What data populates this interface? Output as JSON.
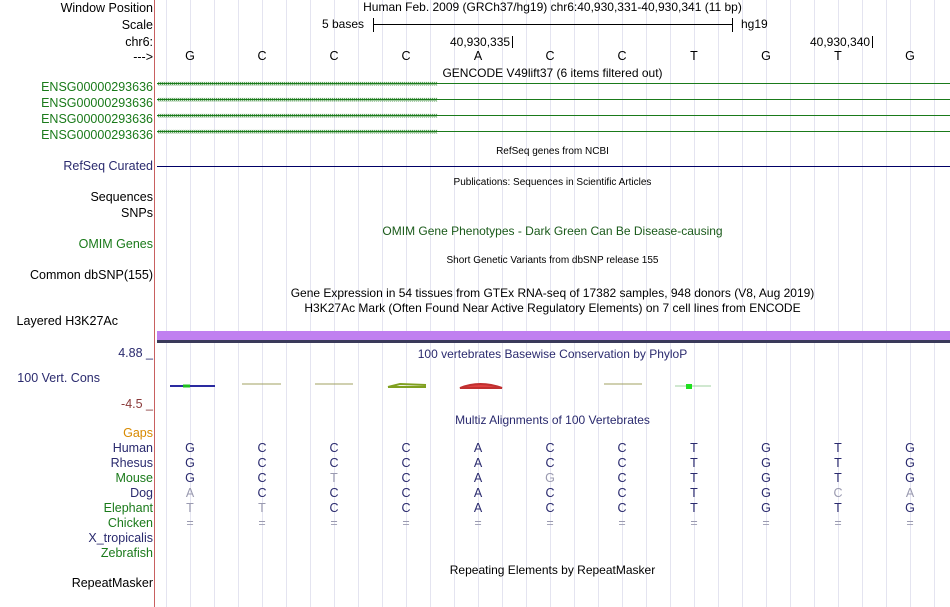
{
  "labels": {
    "window_position": "Window Position",
    "scale": "Scale",
    "chrom": "chr6:",
    "strand": "--->",
    "gencode": [
      "ENSG00000293636",
      "ENSG00000293636",
      "ENSG00000293636",
      "ENSG00000293636"
    ],
    "refseq": "RefSeq Curated",
    "sequences": "Sequences",
    "snps": "SNPs",
    "omim": "OMIM Genes",
    "dbsnp": "Common dbSNP(155)",
    "h3k27ac": "Layered H3K27Ac",
    "cons_max": "4.88 _",
    "cons_label": "100 Vert. Cons",
    "cons_min": "-4.5 _",
    "gaps": "Gaps",
    "species": [
      "Human",
      "Rhesus",
      "Mouse",
      "Dog",
      "Elephant",
      "Chicken",
      "X_tropicalis",
      "Zebrafish"
    ],
    "repeatmasker": "RepeatMasker"
  },
  "header": {
    "position_text": "Human Feb. 2009 (GRCh37/hg19)   chr6:40,930,331-40,930,341 (11 bp)",
    "scale_text": "5 bases",
    "assembly": "hg19",
    "tick1": "40,930,335",
    "tick2": "40,930,340"
  },
  "tracks": {
    "gencode_title": "GENCODE V49lift37 (6 items filtered out)",
    "refseq_title": "RefSeq genes from NCBI",
    "pubs_title": "Publications: Sequences in Scientific Articles",
    "omim_title": "OMIM Gene Phenotypes - Dark Green Can Be Disease-causing",
    "snp_title": "Short Genetic Variants from dbSNP release 155",
    "gtex_title": "Gene Expression in 54 tissues from GTEx RNA-seq of 17382 samples, 948 donors (V8, Aug 2019)",
    "h3k27ac_title": "H3K27Ac Mark (Often Found Near Active Regulatory Elements) on 7 cell lines from ENCODE",
    "phylop_title": "100 vertebrates Basewise Conservation by PhyloP",
    "multiz_title": "Multiz Alignments of 100 Vertebrates",
    "repeat_title": "Repeating Elements by RepeatMasker"
  },
  "sequence": {
    "bases": [
      "G",
      "C",
      "C",
      "C",
      "A",
      "C",
      "C",
      "T",
      "G",
      "T",
      "G"
    ],
    "alignment": [
      [
        "G",
        "C",
        "C",
        "C",
        "A",
        "C",
        "C",
        "T",
        "G",
        "T",
        "G"
      ],
      [
        "G",
        "C",
        "C",
        "C",
        "A",
        "C",
        "C",
        "T",
        "G",
        "T",
        "G"
      ],
      [
        "G",
        "C",
        "T",
        "C",
        "A",
        "G",
        "C",
        "T",
        "G",
        "T",
        "G"
      ],
      [
        "A",
        "C",
        "C",
        "C",
        "A",
        "C",
        "C",
        "T",
        "G",
        "C",
        "A"
      ],
      [
        "T",
        "T",
        "C",
        "C",
        "A",
        "C",
        "C",
        "T",
        "G",
        "T",
        "G"
      ],
      [
        "=",
        "=",
        "=",
        "=",
        "=",
        "=",
        "=",
        "=",
        "=",
        "=",
        "="
      ],
      [
        "",
        "",
        "",
        "",
        "",
        "",
        "",
        "",
        "",
        "",
        ""
      ],
      [
        "",
        "",
        "",
        "",
        "",
        "",
        "",
        "",
        "",
        "",
        ""
      ]
    ]
  },
  "colors": {
    "label_dark": "#000000",
    "label_blue": "#2a2a6e",
    "label_green": "#1a7a1a",
    "gencode": "#1a7a1a",
    "refseq": "#000066",
    "h3k27ac": "#c080f0",
    "mismatch": "#9a9ab0",
    "gaps": "#d88a00"
  }
}
